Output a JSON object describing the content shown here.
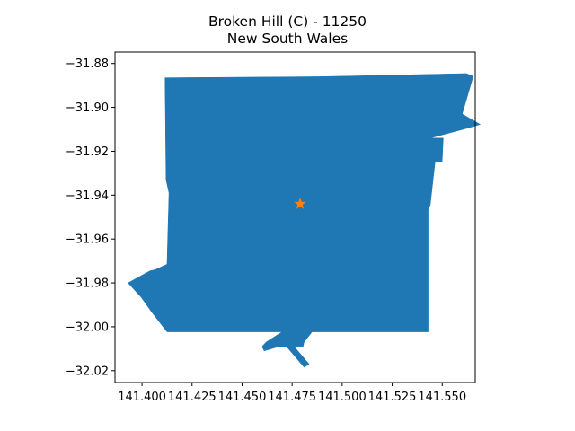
{
  "title": {
    "line1": "Broken Hill (C) - 11250",
    "line2": "New South Wales"
  },
  "colors": {
    "region_fill": "#1f77b4",
    "marker": "#ff7f0e",
    "axis": "#000000"
  },
  "chart_data": {
    "type": "map",
    "region_name": "Broken Hill (C) - 11250",
    "state": "New South Wales",
    "xlim": [
      141.3865,
      141.5665
    ],
    "ylim": [
      -32.0254,
      -31.8748
    ],
    "x_ticks": [
      141.4,
      141.425,
      141.45,
      141.475,
      141.5,
      141.525,
      141.55
    ],
    "x_tick_labels": [
      "141.400",
      "141.425",
      "141.450",
      "141.475",
      "141.500",
      "141.525",
      "141.550"
    ],
    "y_ticks": [
      -31.88,
      -31.9,
      -31.92,
      -31.94,
      -31.96,
      -31.98,
      -32.0,
      -32.02
    ],
    "y_tick_labels": [
      "−31.88",
      "−31.90",
      "−31.92",
      "−31.94",
      "−31.96",
      "−31.98",
      "−32.00",
      "−32.02"
    ],
    "marker": {
      "symbol": "star",
      "lon": 141.479,
      "lat": -31.944
    },
    "boundary": [
      [
        141.4115,
        -31.8865
      ],
      [
        141.4885,
        -31.886
      ],
      [
        141.562,
        -31.8846
      ],
      [
        141.5655,
        -31.8858
      ],
      [
        141.56,
        -31.903
      ],
      [
        141.569,
        -31.9078
      ],
      [
        141.5605,
        -31.91
      ],
      [
        141.544,
        -31.914
      ],
      [
        141.5505,
        -31.914
      ],
      [
        141.55,
        -31.9246
      ],
      [
        141.5465,
        -31.9246
      ],
      [
        141.544,
        -31.9445
      ],
      [
        141.543,
        -31.9467
      ],
      [
        141.543,
        -32.0023
      ],
      [
        141.485,
        -32.0023
      ],
      [
        141.481,
        -32.007
      ],
      [
        141.4805,
        -32.009
      ],
      [
        141.476,
        -32.009
      ],
      [
        141.4835,
        -32.017
      ],
      [
        141.481,
        -32.0185
      ],
      [
        141.4725,
        -32.0093
      ],
      [
        141.4685,
        -32.009
      ],
      [
        141.461,
        -32.011
      ],
      [
        141.46,
        -32.009
      ],
      [
        141.462,
        -32.007
      ],
      [
        141.47,
        -32.0023
      ],
      [
        141.4125,
        -32.0023
      ],
      [
        141.405,
        -31.9935
      ],
      [
        141.3995,
        -31.9865
      ],
      [
        141.393,
        -31.98
      ],
      [
        141.399,
        -31.977
      ],
      [
        141.404,
        -31.9745
      ],
      [
        141.4065,
        -31.974
      ],
      [
        141.4125,
        -31.9715
      ],
      [
        141.4135,
        -31.939
      ],
      [
        141.412,
        -31.933
      ],
      [
        141.4115,
        -31.8865
      ]
    ]
  }
}
